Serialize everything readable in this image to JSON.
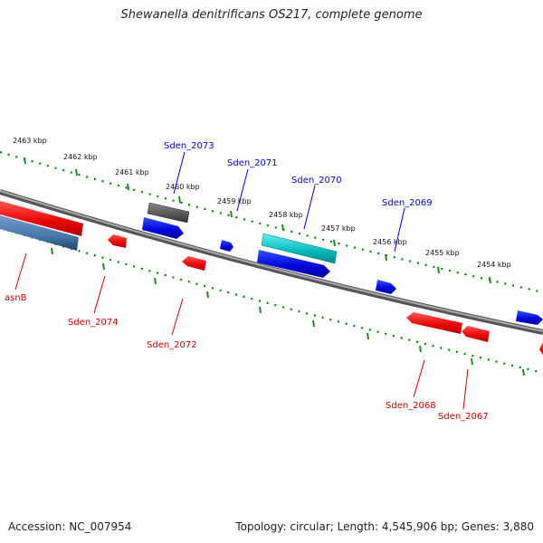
{
  "title": "Shewanella denitrificans OS217, complete genome",
  "footer": {
    "accession": "Accession: NC_007954",
    "stats": "Topology: circular; Length: 4,545,906 bp; Genes: 3,880"
  },
  "ruler_ticks": [
    {
      "label": "2463 kbp"
    },
    {
      "label": "2462 kbp"
    },
    {
      "label": "2461 kbp"
    },
    {
      "label": "2460 kbp"
    },
    {
      "label": "2459 kbp"
    },
    {
      "label": "2458 kbp"
    },
    {
      "label": "2457 kbp"
    },
    {
      "label": "2456 kbp"
    },
    {
      "label": "2455 kbp"
    },
    {
      "label": "2454 kbp"
    }
  ],
  "genes": [
    {
      "label": "Sden_2073",
      "strand": "forward",
      "color": "#0000ee"
    },
    {
      "label": "Sden_2071",
      "strand": "forward",
      "color": "#0000ee"
    },
    {
      "label": "Sden_2070",
      "strand": "forward",
      "color": "#0000ee"
    },
    {
      "label": "Sden_2069",
      "strand": "forward",
      "color": "#0000ee"
    },
    {
      "label": "asnB",
      "strand": "reverse",
      "color": "#ee0000"
    },
    {
      "label": "Sden_2074",
      "strand": "reverse",
      "color": "#ee0000"
    },
    {
      "label": "Sden_2072",
      "strand": "reverse",
      "color": "#ee0000"
    },
    {
      "label": "Sden_2068",
      "strand": "reverse",
      "color": "#ee0000"
    },
    {
      "label": "Sden_2067",
      "strand": "reverse",
      "color": "#ee0000"
    }
  ],
  "colors": {
    "forward_gene": "#0000ee",
    "reverse_gene": "#ee0000",
    "backbone": "#777777",
    "ruler_dot": "#008800",
    "ruler_tick": "#228822",
    "feature_gray": "#555555",
    "feature_cyan": "#00bbbb",
    "feature_steelblue": "#4477aa"
  }
}
